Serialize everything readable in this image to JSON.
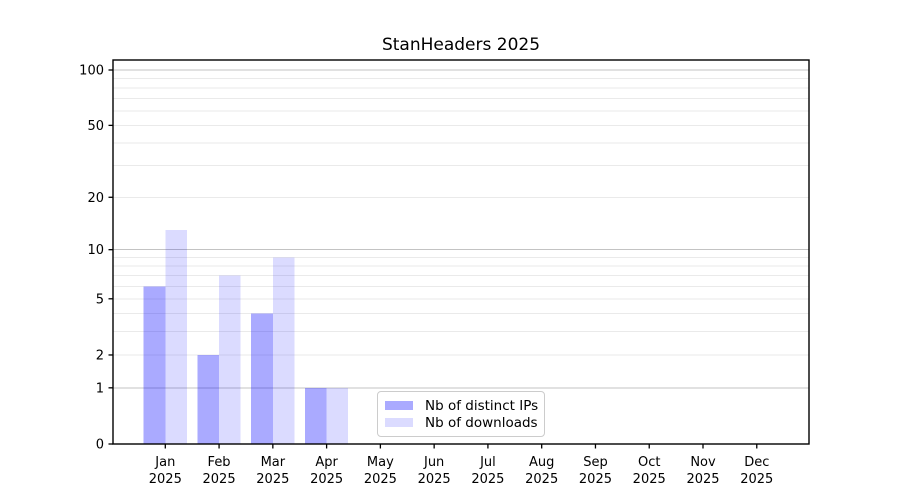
{
  "chart_data": {
    "type": "bar",
    "title": "StanHeaders 2025",
    "categories": [
      "Jan",
      "Feb",
      "Mar",
      "Apr",
      "May",
      "Jun",
      "Jul",
      "Aug",
      "Sep",
      "Oct",
      "Nov",
      "Dec"
    ],
    "x_year_label": "2025",
    "series": [
      {
        "name": "Nb of distinct IPs",
        "color": "rgba(0,0,255,0.333)",
        "values": [
          6,
          2,
          4,
          1,
          0,
          0,
          0,
          0,
          0,
          0,
          0,
          0
        ]
      },
      {
        "name": "Nb of downloads",
        "color": "rgba(0,0,255,0.140)",
        "values": [
          13,
          7,
          9,
          1,
          0,
          0,
          0,
          0,
          0,
          0,
          0,
          0
        ]
      }
    ],
    "yscale": "log1p",
    "ylim": [
      0,
      113
    ],
    "yticks_labeled": [
      0,
      1,
      2,
      5,
      10,
      20,
      50,
      100
    ],
    "ygrid_major": [
      1,
      10,
      100
    ],
    "ygrid_minor": [
      2,
      3,
      4,
      5,
      6,
      7,
      8,
      9,
      20,
      30,
      40,
      50,
      60,
      70,
      80,
      90
    ],
    "grid": true,
    "legend_position": "lower center inside"
  },
  "colors": {
    "background": "#ffffff",
    "axis": "#000000",
    "grid_major": "#c3c3c3",
    "grid_minor": "#eaeaea",
    "text": "#000000",
    "legend_border": "#cccccc"
  }
}
